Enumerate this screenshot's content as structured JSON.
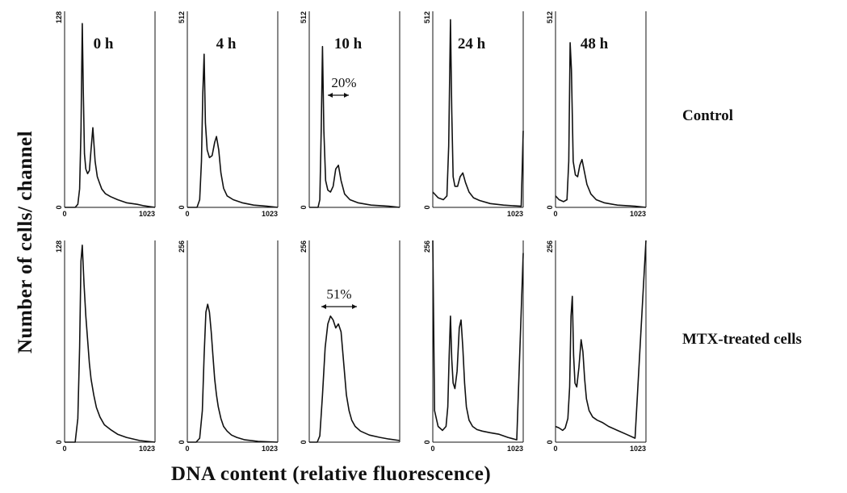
{
  "figure": {
    "ylabel": "Number of cells/ channel",
    "xlabel": "DNA content (relative fluorescence)",
    "row_labels": [
      "Control",
      "MTX-treated cells"
    ],
    "line_color": "#111111"
  },
  "chart_data": [
    {
      "type": "line",
      "title": "0 h",
      "row": "Control",
      "x_ticks": [
        "0",
        "1023"
      ],
      "y_ticks": [
        "0",
        "128"
      ],
      "xlim": [
        0,
        1023
      ],
      "ylim": [
        0,
        128
      ],
      "series": [
        {
          "x": [
            0,
            120,
            150,
            170,
            185,
            200,
            212,
            225,
            240,
            260,
            280,
            300,
            320,
            345,
            370,
            395,
            420,
            460,
            520,
            600,
            700,
            820,
            900,
            1023
          ],
          "values": [
            0,
            0,
            2,
            12,
            50,
            120,
            75,
            35,
            25,
            22,
            24,
            38,
            52,
            30,
            20,
            16,
            12,
            9,
            7,
            5,
            3,
            2,
            1,
            0
          ]
        }
      ]
    },
    {
      "type": "line",
      "title": "4 h",
      "row": "Control",
      "x_ticks": [
        "0",
        "1023"
      ],
      "y_ticks": [
        "0",
        "512"
      ],
      "xlim": [
        0,
        1023
      ],
      "ylim": [
        0,
        512
      ],
      "series": [
        {
          "x": [
            0,
            110,
            140,
            160,
            175,
            190,
            205,
            225,
            250,
            280,
            310,
            330,
            355,
            380,
            410,
            450,
            520,
            620,
            750,
            900,
            1023
          ],
          "values": [
            0,
            0,
            20,
            120,
            300,
            400,
            220,
            150,
            130,
            135,
            170,
            185,
            150,
            90,
            50,
            30,
            20,
            12,
            6,
            3,
            0
          ]
        }
      ]
    },
    {
      "type": "line",
      "title": "10 h",
      "row": "Control",
      "annotation": "20%",
      "x_ticks": [],
      "y_ticks": [
        "0",
        "512"
      ],
      "xlim": [
        0,
        1023
      ],
      "ylim": [
        0,
        512
      ],
      "series": [
        {
          "x": [
            0,
            100,
            120,
            135,
            150,
            165,
            185,
            210,
            240,
            270,
            300,
            330,
            360,
            400,
            460,
            550,
            700,
            900,
            1023
          ],
          "values": [
            0,
            0,
            20,
            200,
            420,
            200,
            70,
            45,
            40,
            55,
            100,
            110,
            70,
            35,
            20,
            12,
            6,
            3,
            0
          ]
        }
      ]
    },
    {
      "type": "line",
      "title": "24 h",
      "row": "Control",
      "x_ticks": [
        "1023"
      ],
      "y_ticks": [
        "0",
        "512"
      ],
      "xlim": [
        0,
        1023
      ],
      "ylim": [
        0,
        512
      ],
      "series": [
        {
          "x": [
            0,
            60,
            120,
            160,
            180,
            200,
            215,
            230,
            250,
            280,
            310,
            340,
            370,
            410,
            460,
            530,
            650,
            800,
            1000,
            1023
          ],
          "values": [
            40,
            25,
            20,
            30,
            160,
            490,
            250,
            80,
            55,
            55,
            80,
            90,
            65,
            40,
            25,
            18,
            10,
            6,
            3,
            200
          ]
        }
      ]
    },
    {
      "type": "line",
      "title": "48 h",
      "row": "Control",
      "x_ticks": [
        "0",
        "1023"
      ],
      "y_ticks": [
        "0",
        "512"
      ],
      "xlim": [
        0,
        1023
      ],
      "ylim": [
        0,
        512
      ],
      "series": [
        {
          "x": [
            0,
            40,
            90,
            130,
            150,
            165,
            180,
            200,
            225,
            250,
            275,
            300,
            325,
            355,
            400,
            460,
            550,
            700,
            900,
            1023
          ],
          "values": [
            30,
            20,
            15,
            20,
            120,
            430,
            360,
            120,
            85,
            80,
            110,
            125,
            95,
            60,
            35,
            20,
            12,
            6,
            3,
            0
          ]
        }
      ]
    },
    {
      "type": "line",
      "title": "",
      "row": "MTX-treated cells",
      "x_ticks": [
        "0",
        "1023"
      ],
      "y_ticks": [
        "0",
        "128"
      ],
      "xlim": [
        0,
        1023
      ],
      "ylim": [
        0,
        128
      ],
      "series": [
        {
          "x": [
            0,
            120,
            150,
            170,
            185,
            200,
            220,
            240,
            260,
            280,
            300,
            330,
            360,
            400,
            450,
            520,
            600,
            700,
            850,
            1023
          ],
          "values": [
            0,
            0,
            15,
            60,
            115,
            125,
            100,
            80,
            65,
            50,
            40,
            30,
            22,
            16,
            11,
            8,
            5,
            3,
            1,
            0
          ]
        }
      ]
    },
    {
      "type": "line",
      "title": "",
      "row": "MTX-treated cells",
      "x_ticks": [
        "0",
        "1023"
      ],
      "y_ticks": [
        "0",
        "256"
      ],
      "xlim": [
        0,
        1023
      ],
      "ylim": [
        0,
        256
      ],
      "series": [
        {
          "x": [
            0,
            100,
            140,
            170,
            190,
            210,
            230,
            250,
            270,
            290,
            310,
            330,
            350,
            380,
            410,
            450,
            500,
            560,
            650,
            800,
            1023
          ],
          "values": [
            0,
            0,
            5,
            40,
            110,
            165,
            175,
            165,
            140,
            110,
            80,
            60,
            45,
            30,
            20,
            14,
            9,
            6,
            3,
            1,
            0
          ]
        }
      ]
    },
    {
      "type": "line",
      "title": "",
      "row": "MTX-treated cells",
      "annotation": "51%",
      "x_ticks": [],
      "y_ticks": [
        "0",
        "256"
      ],
      "xlim": [
        0,
        1023
      ],
      "ylim": [
        0,
        256
      ],
      "series": [
        {
          "x": [
            0,
            90,
            120,
            150,
            180,
            210,
            240,
            270,
            300,
            330,
            360,
            390,
            420,
            450,
            480,
            520,
            580,
            680,
            800,
            900,
            1023
          ],
          "values": [
            0,
            0,
            8,
            60,
            120,
            150,
            160,
            155,
            145,
            150,
            140,
            100,
            60,
            40,
            28,
            20,
            14,
            9,
            6,
            4,
            2
          ]
        }
      ]
    },
    {
      "type": "line",
      "title": "",
      "row": "MTX-treated cells",
      "x_ticks": [
        "0",
        "1023"
      ],
      "y_ticks": [
        "0",
        "256"
      ],
      "xlim": [
        0,
        1023
      ],
      "ylim": [
        0,
        256
      ],
      "series": [
        {
          "x": [
            0,
            20,
            60,
            110,
            150,
            170,
            185,
            200,
            215,
            230,
            250,
            275,
            300,
            320,
            340,
            360,
            380,
            410,
            450,
            500,
            560,
            650,
            750,
            850,
            950,
            1023
          ],
          "values": [
            256,
            40,
            20,
            15,
            20,
            45,
            110,
            160,
            105,
            75,
            68,
            90,
            145,
            155,
            120,
            75,
            45,
            28,
            20,
            16,
            14,
            12,
            10,
            6,
            3,
            240
          ]
        }
      ]
    },
    {
      "type": "line",
      "title": "",
      "row": "MTX-treated cells",
      "x_ticks": [
        "0",
        "1023"
      ],
      "y_ticks": [
        "0",
        "256"
      ],
      "xlim": [
        0,
        1023
      ],
      "ylim": [
        0,
        256
      ],
      "series": [
        {
          "x": [
            0,
            40,
            80,
            110,
            140,
            160,
            175,
            190,
            205,
            220,
            240,
            265,
            290,
            310,
            330,
            350,
            380,
            420,
            470,
            530,
            600,
            700,
            800,
            900,
            1023
          ],
          "values": [
            20,
            18,
            15,
            18,
            30,
            70,
            160,
            185,
            110,
            75,
            70,
            95,
            130,
            115,
            80,
            55,
            40,
            32,
            28,
            25,
            20,
            15,
            10,
            5,
            256
          ]
        }
      ]
    }
  ]
}
